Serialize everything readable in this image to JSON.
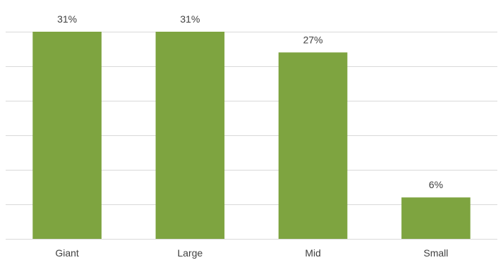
{
  "chart_data": {
    "type": "bar",
    "categories": [
      "Giant",
      "Large",
      "Mid",
      "Small"
    ],
    "values": [
      31,
      31,
      27,
      6
    ],
    "data_labels": [
      "31%",
      "31%",
      "27%",
      "6%"
    ],
    "title": "",
    "xlabel": "",
    "ylabel": "",
    "ylim": [
      0,
      30
    ],
    "grid": true,
    "legend": "none",
    "bar_color": "#7ea440",
    "grid_color": "#d9d9d9",
    "text_color": "#404040"
  }
}
